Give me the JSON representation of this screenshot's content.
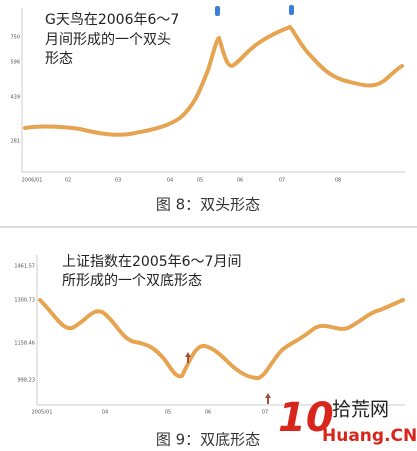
{
  "figure8": {
    "annotation": [
      "G天鸟在2006年6～7",
      "月间形成的一个双头",
      "形态"
    ],
    "y_labels": [
      "750",
      "596",
      "439",
      "281"
    ],
    "x_labels": [
      "2006/01",
      "02",
      "03",
      "04",
      "05",
      "06",
      "07",
      "08"
    ],
    "caption": "图 8：双头形态"
  },
  "figure9": {
    "annotation": [
      "上证指数在2005年6～7月间",
      "所形成的一个双底形态"
    ],
    "y_labels": [
      "1461.57",
      "1300.73",
      "1158.46",
      "998.23"
    ],
    "x_labels": [
      "2005/01",
      "04",
      "05",
      "06",
      "07"
    ],
    "caption": "图 9：双底形态"
  },
  "watermark": {
    "number": "10",
    "site": "拾荒网",
    "domain": "Huang.CN"
  }
}
